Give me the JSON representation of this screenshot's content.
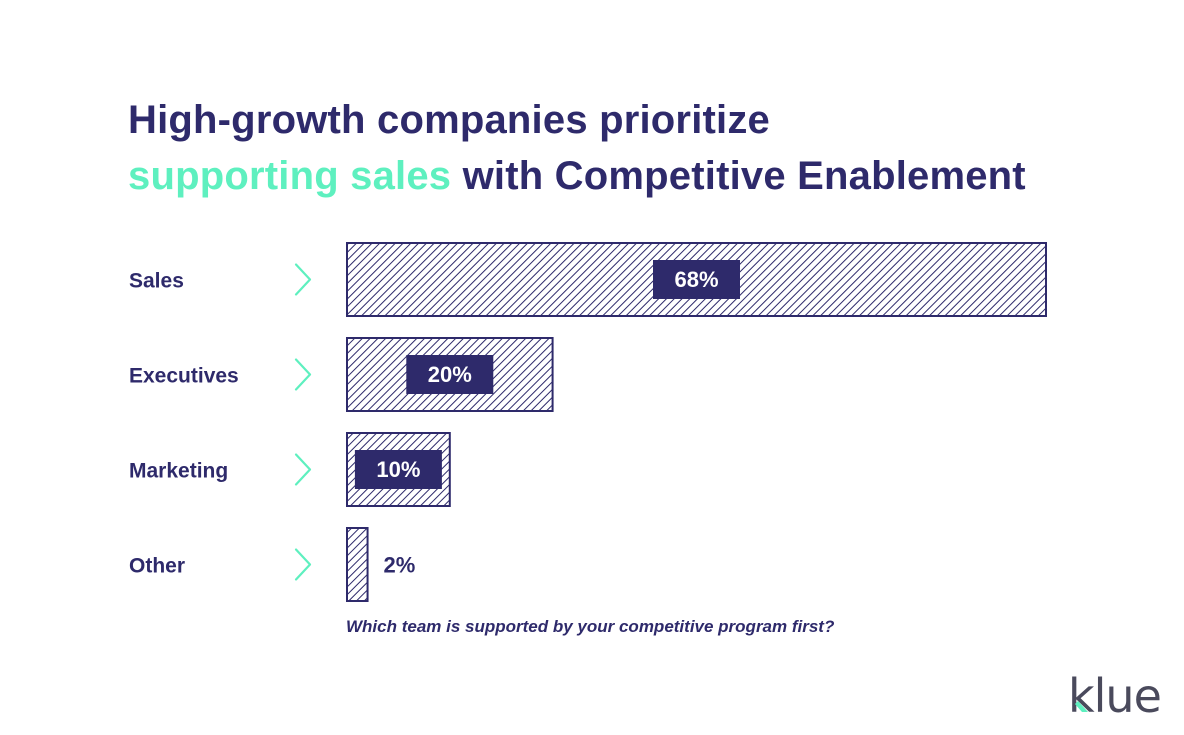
{
  "title": {
    "line1": "High-growth companies prioritize",
    "highlight": "supporting sales",
    "line2_rest": " with Competitive Enablement"
  },
  "colors": {
    "primary": "#2e2a6b",
    "accent": "#5ef0bf",
    "logo_gray": "#4a4a5c"
  },
  "chart_data": {
    "type": "bar",
    "orientation": "horizontal",
    "categories": [
      "Sales",
      "Executives",
      "Marketing",
      "Other"
    ],
    "values": [
      68,
      20,
      10,
      2
    ],
    "value_labels": [
      "68%",
      "20%",
      "10%",
      "2%"
    ],
    "unit": "%",
    "xlim": [
      0,
      68
    ],
    "grid": false,
    "legend": "none",
    "fill": "diagonal-hatch"
  },
  "caption": "Which team is supported by your competitive program first?",
  "logo": {
    "icon": "klue-logo",
    "text": "klue"
  }
}
